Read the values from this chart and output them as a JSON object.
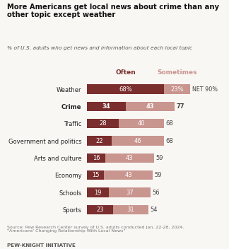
{
  "title_line1": "More Americans get local news about crime than any",
  "title_line2": "other topic except weather",
  "subtitle": "% of U.S. adults who get news and information about each local topic",
  "categories": [
    "Weather",
    "Crime",
    "Traffic",
    "Government and politics",
    "Arts and culture",
    "Economy",
    "Schools",
    "Sports"
  ],
  "bold_category": "Crime",
  "often_values": [
    68,
    34,
    28,
    22,
    16,
    15,
    19,
    23
  ],
  "sometimes_values": [
    23,
    43,
    40,
    46,
    43,
    43,
    37,
    31
  ],
  "net_values": [
    90,
    77,
    68,
    68,
    59,
    59,
    56,
    54
  ],
  "weather_net_label": "NET 90%",
  "often_color": "#7a2e2e",
  "sometimes_color": "#c9958f",
  "bar_height": 0.55,
  "legend_often": "Often",
  "legend_sometimes": "Sometimes",
  "legend_often_color": "#7a2e2e",
  "legend_sometimes_color": "#c9958f",
  "source_text": "Source: Pew Research Center survey of U.S. adults conducted Jan. 22-28, 2024.\n\"Americans' Changing Relationship With Local News\"",
  "footer_text": "PEW-KNIGHT INITIATIVE",
  "background_color": "#f9f7f4",
  "text_color": "#222222",
  "net_text_color": "#444444"
}
